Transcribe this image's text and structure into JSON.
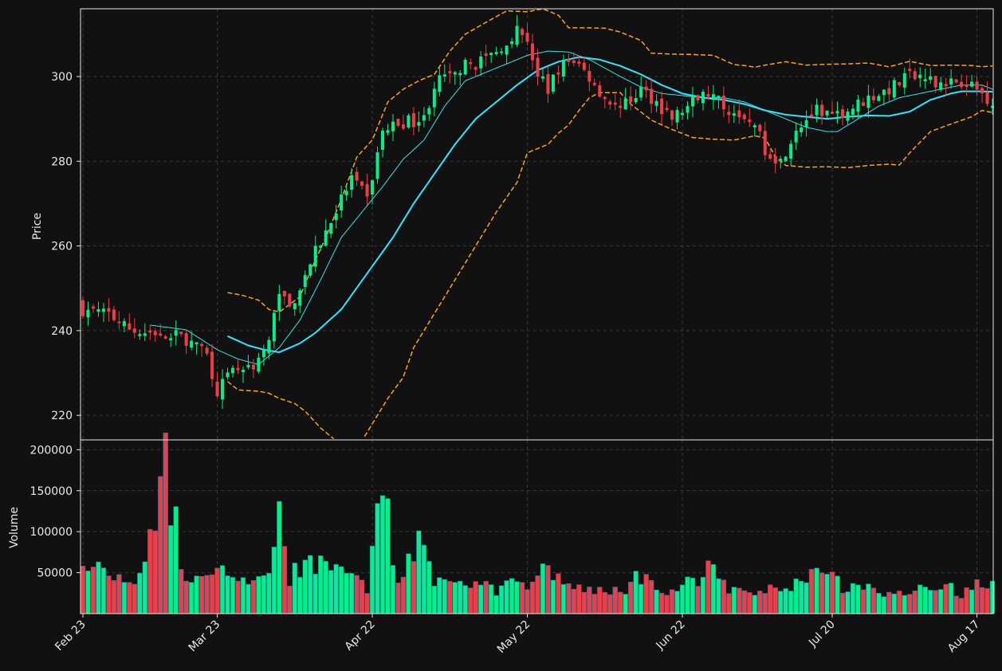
{
  "chart_data": {
    "type": "candlestick",
    "colors": {
      "background": "#111111",
      "frame": "#e8e8e8",
      "grid": "#3a3a3a",
      "up": "#00f08c",
      "down": "#f03c46",
      "ma_fast": "#2de6e6",
      "ma_slow": "#2de6ff",
      "bands": "#ffa500"
    },
    "x_tick_labels": [
      "Feb 23",
      "Mar 23",
      "Apr 22",
      "May 22",
      "Jun 22",
      "Jul 20",
      "Aug 17"
    ],
    "x_tick_index": [
      0,
      26,
      56,
      86,
      116,
      145,
      173
    ],
    "price_panel": {
      "ylabel": "Price",
      "ylim": [
        214.2,
        316
      ],
      "yticks": [
        220,
        240,
        260,
        280,
        300
      ],
      "grid": true
    },
    "volume_panel": {
      "ylabel": "Volume",
      "ylim": [
        0,
        212000
      ],
      "yticks": [
        50000,
        100000,
        150000,
        200000
      ],
      "ytick_labels": [
        "50000",
        "100000",
        "150000",
        "200000"
      ],
      "grid": true
    },
    "anchors": [
      [
        0,
        245,
        51000
      ],
      [
        5,
        244,
        50000
      ],
      [
        8,
        241,
        38000
      ],
      [
        12,
        239,
        52000
      ],
      [
        16,
        239.5,
        170000
      ],
      [
        20,
        238,
        40000
      ],
      [
        24,
        234,
        45000
      ],
      [
        26,
        226,
        50000
      ],
      [
        29,
        230,
        36000
      ],
      [
        33,
        232,
        32000
      ],
      [
        36,
        237,
        60000
      ],
      [
        38,
        250,
        110000
      ],
      [
        40,
        245,
        45000
      ],
      [
        44,
        256,
        60000
      ],
      [
        48,
        266,
        70000
      ],
      [
        52,
        276,
        40000
      ],
      [
        55,
        271,
        30000
      ],
      [
        58,
        287,
        150000
      ],
      [
        61,
        289,
        40000
      ],
      [
        66,
        290,
        110000
      ],
      [
        68,
        298,
        40000
      ],
      [
        72,
        302,
        30000
      ],
      [
        76,
        303,
        40000
      ],
      [
        80,
        306,
        30000
      ],
      [
        84,
        311,
        36000
      ],
      [
        86,
        309,
        30000
      ],
      [
        88,
        300,
        40000
      ],
      [
        90,
        297,
        60000
      ],
      [
        92,
        302,
        40000
      ],
      [
        95,
        304,
        35000
      ],
      [
        98,
        300,
        30000
      ],
      [
        101,
        295,
        30000
      ],
      [
        104,
        292,
        25000
      ],
      [
        108,
        297,
        50000
      ],
      [
        111,
        294,
        30000
      ],
      [
        114,
        290,
        25000
      ],
      [
        118,
        294,
        40000
      ],
      [
        121,
        296,
        60000
      ],
      [
        124,
        293,
        35000
      ],
      [
        128,
        291,
        25000
      ],
      [
        130,
        288,
        25000
      ],
      [
        132,
        283,
        30000
      ],
      [
        135,
        280,
        28000
      ],
      [
        138,
        288,
        35000
      ],
      [
        142,
        292,
        45000
      ],
      [
        145,
        291,
        40000
      ],
      [
        148,
        292,
        30000
      ],
      [
        152,
        295,
        35000
      ],
      [
        156,
        297,
        25000
      ],
      [
        160,
        300,
        30000
      ],
      [
        164,
        299,
        28000
      ],
      [
        168,
        299,
        30000
      ],
      [
        171,
        299,
        25000
      ],
      [
        174,
        296,
        45000
      ],
      [
        176,
        294,
        42000
      ]
    ],
    "ma_fast_anchors": [
      [
        13,
        241.3
      ],
      [
        20,
        240.2
      ],
      [
        26,
        235.5
      ],
      [
        30,
        233.3
      ],
      [
        34,
        232
      ],
      [
        38,
        236
      ],
      [
        42,
        242.5
      ],
      [
        46,
        252
      ],
      [
        50,
        262
      ],
      [
        54,
        268
      ],
      [
        58,
        274
      ],
      [
        62,
        280.5
      ],
      [
        66,
        285
      ],
      [
        70,
        293
      ],
      [
        74,
        299
      ],
      [
        78,
        301
      ],
      [
        82,
        303
      ],
      [
        86,
        305
      ],
      [
        90,
        306
      ],
      [
        94,
        305.8
      ],
      [
        98,
        304
      ],
      [
        101,
        302
      ],
      [
        104,
        300
      ],
      [
        108,
        297.5
      ],
      [
        112,
        296
      ],
      [
        116,
        295.5
      ],
      [
        120,
        295
      ],
      [
        124,
        295
      ],
      [
        128,
        294
      ],
      [
        132,
        292
      ],
      [
        136,
        290
      ],
      [
        140,
        288
      ],
      [
        144,
        287
      ],
      [
        146,
        287
      ],
      [
        150,
        290
      ],
      [
        154,
        293
      ],
      [
        158,
        295
      ],
      [
        162,
        296
      ],
      [
        166,
        297
      ],
      [
        170,
        298
      ],
      [
        174,
        298
      ],
      [
        176,
        297
      ]
    ],
    "ma_slow_anchors": [
      [
        28,
        238.7
      ],
      [
        32,
        236.5
      ],
      [
        35,
        235.5
      ],
      [
        38,
        234.9
      ],
      [
        42,
        237
      ],
      [
        45,
        239.5
      ],
      [
        50,
        245
      ],
      [
        55,
        253.5
      ],
      [
        60,
        262
      ],
      [
        64,
        270
      ],
      [
        68,
        277
      ],
      [
        72,
        284
      ],
      [
        76,
        290
      ],
      [
        80,
        294
      ],
      [
        84,
        298
      ],
      [
        88,
        301.5
      ],
      [
        92,
        303.5
      ],
      [
        96,
        304.6
      ],
      [
        100,
        304
      ],
      [
        104,
        302.5
      ],
      [
        108,
        300.5
      ],
      [
        112,
        298
      ],
      [
        116,
        296
      ],
      [
        120,
        295
      ],
      [
        124,
        294.5
      ],
      [
        128,
        293.5
      ],
      [
        132,
        292
      ],
      [
        136,
        291
      ],
      [
        140,
        290.5
      ],
      [
        144,
        290
      ],
      [
        148,
        290.5
      ],
      [
        152,
        290.8
      ],
      [
        156,
        290.7
      ],
      [
        160,
        291.7
      ],
      [
        164,
        294.5
      ],
      [
        168,
        296
      ],
      [
        170,
        296.5
      ],
      [
        174,
        296.5
      ],
      [
        176,
        296.4
      ]
    ],
    "upper_band_anchors": [
      [
        28,
        249
      ],
      [
        31,
        248.3
      ],
      [
        34,
        247.2
      ],
      [
        36,
        245
      ],
      [
        38,
        244.4
      ],
      [
        40,
        246.2
      ],
      [
        42,
        248
      ],
      [
        44,
        254
      ],
      [
        47,
        262
      ],
      [
        50,
        271
      ],
      [
        53,
        281
      ],
      [
        56,
        285
      ],
      [
        59,
        294
      ],
      [
        62,
        297
      ],
      [
        65,
        299
      ],
      [
        68,
        300.5
      ],
      [
        71,
        306
      ],
      [
        74,
        310
      ],
      [
        78,
        312.8
      ],
      [
        82,
        315.5
      ],
      [
        86,
        315.3
      ],
      [
        89,
        316
      ],
      [
        92,
        314.5
      ],
      [
        94,
        311.5
      ],
      [
        98,
        311.5
      ],
      [
        101,
        311.4
      ],
      [
        104,
        310.5
      ],
      [
        108,
        308.5
      ],
      [
        110,
        305.5
      ],
      [
        114,
        305.3
      ],
      [
        118,
        305.2
      ],
      [
        122,
        305
      ],
      [
        126,
        302.8
      ],
      [
        128,
        302.6
      ],
      [
        130,
        302.2
      ],
      [
        132,
        302.7
      ],
      [
        136,
        303.5
      ],
      [
        140,
        302.7
      ],
      [
        144,
        302.9
      ],
      [
        148,
        303
      ],
      [
        152,
        303.2
      ],
      [
        156,
        302.3
      ],
      [
        160,
        303.6
      ],
      [
        164,
        302.6
      ],
      [
        168,
        302.7
      ],
      [
        172,
        302.6
      ],
      [
        174,
        302.3
      ],
      [
        176,
        302.5
      ]
    ],
    "lower_band_anchors": [
      [
        28,
        228
      ],
      [
        30,
        226
      ],
      [
        34,
        225.7
      ],
      [
        36,
        225.2
      ],
      [
        38,
        224
      ],
      [
        41,
        222.8
      ],
      [
        43,
        221
      ],
      [
        46,
        217
      ],
      [
        50,
        213
      ],
      [
        54,
        214
      ],
      [
        56,
        218
      ],
      [
        59,
        224
      ],
      [
        62,
        229
      ],
      [
        64,
        236
      ],
      [
        66,
        240
      ],
      [
        70,
        248
      ],
      [
        72,
        252
      ],
      [
        76,
        260
      ],
      [
        80,
        268
      ],
      [
        84,
        275
      ],
      [
        86,
        282
      ],
      [
        90,
        284
      ],
      [
        92,
        286.6
      ],
      [
        94,
        288.6
      ],
      [
        96,
        292
      ],
      [
        98,
        295
      ],
      [
        100,
        296.2
      ],
      [
        104,
        296.2
      ],
      [
        106,
        293.5
      ],
      [
        110,
        289.7
      ],
      [
        114,
        287.5
      ],
      [
        118,
        285.6
      ],
      [
        122,
        285.2
      ],
      [
        126,
        285
      ],
      [
        130,
        286
      ],
      [
        132,
        285.5
      ],
      [
        134,
        281
      ],
      [
        136,
        279
      ],
      [
        140,
        278.6
      ],
      [
        144,
        278.7
      ],
      [
        148,
        278.5
      ],
      [
        152,
        279
      ],
      [
        156,
        279.3
      ],
      [
        158,
        279.1
      ],
      [
        160,
        282
      ],
      [
        164,
        287
      ],
      [
        168,
        288.8
      ],
      [
        172,
        290.5
      ],
      [
        174,
        292
      ],
      [
        176,
        291.5
      ]
    ]
  }
}
